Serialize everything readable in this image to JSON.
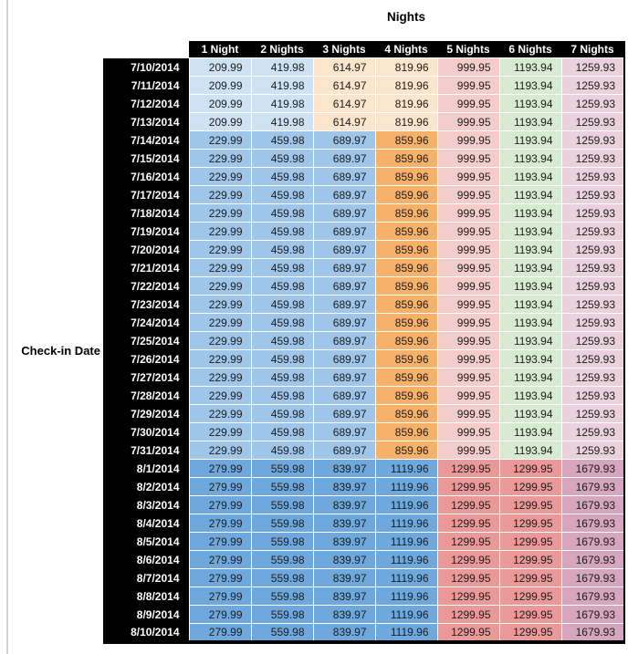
{
  "title": "Nights",
  "row_axis_label": "Check-in Date",
  "columns": [
    "1 Night",
    "2 Nights",
    "3 Nights",
    "4 Nights",
    "5 Nights",
    "6 Nights",
    "7 Nights"
  ],
  "price_bands": {
    "early_july": {
      "values": [
        "209.99",
        "419.98",
        "614.97",
        "819.96",
        "999.95",
        "1193.94",
        "1259.93"
      ],
      "cell_colors": [
        "#CFE2F3",
        "#CFE2F3",
        "#FCE5CD",
        "#FCE5CD",
        "#F4CCCC",
        "#D9EAD3",
        "#EAD1DC"
      ]
    },
    "mid_july": {
      "values": [
        "229.99",
        "459.98",
        "689.97",
        "859.96",
        "999.95",
        "1193.94",
        "1259.93"
      ],
      "cell_colors": [
        "#9FC5E8",
        "#9FC5E8",
        "#9FC5E8",
        "#F6B26B",
        "#F4CCCC",
        "#D9EAD3",
        "#EAD1DC"
      ]
    },
    "august": {
      "values": [
        "279.99",
        "559.98",
        "839.97",
        "1119.96",
        "1299.95",
        "1299.95",
        "1679.93"
      ],
      "cell_colors": [
        "#6FA8DC",
        "#6FA8DC",
        "#6FA8DC",
        "#6FA8DC",
        "#EA9999",
        "#EA9999",
        "#D5A6BD"
      ]
    }
  },
  "rows": [
    {
      "date": "7/10/2014",
      "band": "early_july"
    },
    {
      "date": "7/11/2014",
      "band": "early_july"
    },
    {
      "date": "7/12/2014",
      "band": "early_july"
    },
    {
      "date": "7/13/2014",
      "band": "early_july"
    },
    {
      "date": "7/14/2014",
      "band": "mid_july"
    },
    {
      "date": "7/15/2014",
      "band": "mid_july"
    },
    {
      "date": "7/16/2014",
      "band": "mid_july"
    },
    {
      "date": "7/17/2014",
      "band": "mid_july"
    },
    {
      "date": "7/18/2014",
      "band": "mid_july"
    },
    {
      "date": "7/19/2014",
      "band": "mid_july"
    },
    {
      "date": "7/20/2014",
      "band": "mid_july"
    },
    {
      "date": "7/21/2014",
      "band": "mid_july"
    },
    {
      "date": "7/22/2014",
      "band": "mid_july"
    },
    {
      "date": "7/23/2014",
      "band": "mid_july"
    },
    {
      "date": "7/24/2014",
      "band": "mid_july"
    },
    {
      "date": "7/25/2014",
      "band": "mid_july"
    },
    {
      "date": "7/26/2014",
      "band": "mid_july"
    },
    {
      "date": "7/27/2014",
      "band": "mid_july"
    },
    {
      "date": "7/28/2014",
      "band": "mid_july"
    },
    {
      "date": "7/29/2014",
      "band": "mid_july"
    },
    {
      "date": "7/30/2014",
      "band": "mid_july"
    },
    {
      "date": "7/31/2014",
      "band": "mid_july"
    },
    {
      "date": "8/1/2014",
      "band": "august"
    },
    {
      "date": "8/2/2014",
      "band": "august"
    },
    {
      "date": "8/3/2014",
      "band": "august"
    },
    {
      "date": "8/4/2014",
      "band": "august"
    },
    {
      "date": "8/5/2014",
      "band": "august"
    },
    {
      "date": "8/6/2014",
      "band": "august"
    },
    {
      "date": "8/7/2014",
      "band": "august"
    },
    {
      "date": "8/8/2014",
      "band": "august"
    },
    {
      "date": "8/9/2014",
      "band": "august"
    },
    {
      "date": "8/10/2014",
      "band": "august"
    }
  ],
  "colors": {
    "header_bg": "#000000",
    "header_text": "#ffffff",
    "row_label_bg": "#000000",
    "row_label_text": "#ffffff",
    "grid_line": "#ffffff",
    "value_text": "#1b1b1b",
    "table_border": "#000000",
    "left_rule": "#d7d7d7"
  }
}
